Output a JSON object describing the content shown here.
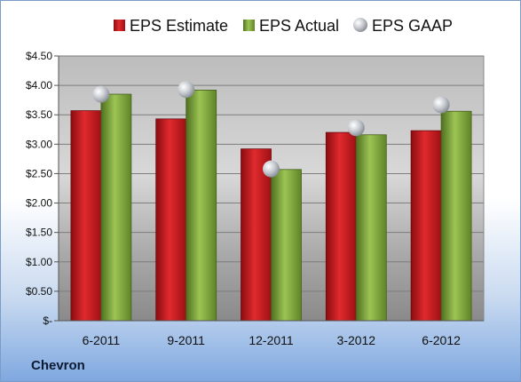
{
  "chart_data": {
    "type": "bar",
    "categories": [
      "6-2011",
      "9-2011",
      "12-2011",
      "3-2012",
      "6-2012"
    ],
    "series": [
      {
        "name": "EPS Estimate",
        "kind": "bar",
        "color": "#c0141b",
        "values": [
          3.57,
          3.43,
          2.92,
          3.2,
          3.23
        ]
      },
      {
        "name": "EPS Actual",
        "kind": "bar",
        "color": "#7fa83a",
        "values": [
          3.85,
          3.92,
          2.57,
          3.16,
          3.56
        ]
      },
      {
        "name": "EPS GAAP",
        "kind": "marker",
        "color": "#b9bec6",
        "values": [
          3.85,
          3.93,
          2.58,
          3.28,
          3.67
        ]
      }
    ],
    "yticks": [
      "$-",
      "$0.50",
      "$1.00",
      "$1.50",
      "$2.00",
      "$2.50",
      "$3.00",
      "$3.50",
      "$4.00",
      "$4.50"
    ],
    "ylim": [
      0,
      4.5
    ],
    "grid": true,
    "legend": "top"
  },
  "footer": {
    "company": "Chevron"
  }
}
